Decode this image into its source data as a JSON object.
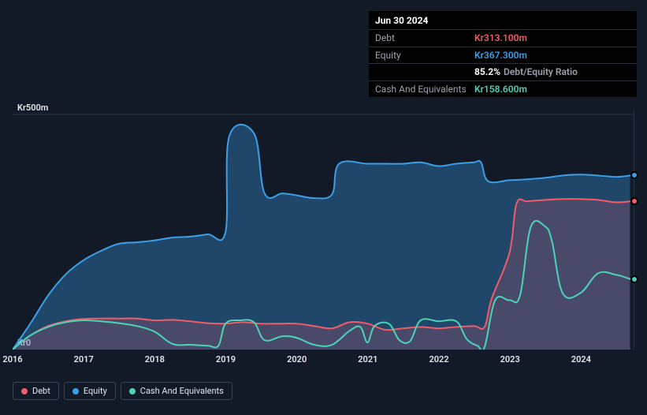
{
  "tooltip": {
    "date": "Jun 30 2024",
    "rows": [
      {
        "label": "Debt",
        "value": "Kr313.100m",
        "color": "#f05c6a"
      },
      {
        "label": "Equity",
        "value": "Kr367.300m",
        "color": "#3b9fe8"
      },
      {
        "label": "",
        "ratio_value": "85.2%",
        "ratio_label": "Debt/Equity Ratio"
      },
      {
        "label": "Cash And Equivalents",
        "value": "Kr158.600m",
        "color": "#4bd3b8"
      }
    ]
  },
  "chart": {
    "type": "area",
    "xlim": [
      2016,
      2024.75
    ],
    "ylim": [
      0,
      510
    ],
    "y_ticks": [
      0,
      500
    ],
    "y_tick_labels": [
      "Kr0",
      "Kr500m"
    ],
    "x_ticks": [
      2016,
      2017,
      2018,
      2019,
      2020,
      2021,
      2022,
      2023,
      2024
    ],
    "x_tick_labels": [
      "2016",
      "2017",
      "2018",
      "2019",
      "2020",
      "2021",
      "2022",
      "2023",
      "2024"
    ],
    "background_color": "#121a27",
    "grid_color": "#2a3446",
    "series": {
      "equity": {
        "label": "Equity",
        "color": "#3b9fe8",
        "fill_opacity": 0.35,
        "stroke_width": 2,
        "points": [
          [
            2016.0,
            0
          ],
          [
            2016.25,
            55
          ],
          [
            2016.5,
            115
          ],
          [
            2016.75,
            160
          ],
          [
            2017.0,
            190
          ],
          [
            2017.25,
            210
          ],
          [
            2017.5,
            225
          ],
          [
            2017.75,
            228
          ],
          [
            2018.0,
            232
          ],
          [
            2018.25,
            238
          ],
          [
            2018.5,
            240
          ],
          [
            2018.75,
            245
          ],
          [
            2019.0,
            250
          ],
          [
            2019.05,
            452
          ],
          [
            2019.4,
            460
          ],
          [
            2019.55,
            332
          ],
          [
            2019.8,
            332
          ],
          [
            2020.0,
            328
          ],
          [
            2020.25,
            322
          ],
          [
            2020.5,
            330
          ],
          [
            2020.6,
            395
          ],
          [
            2021.0,
            395
          ],
          [
            2021.25,
            395
          ],
          [
            2021.5,
            395
          ],
          [
            2021.75,
            398
          ],
          [
            2022.0,
            390
          ],
          [
            2022.25,
            395
          ],
          [
            2022.5,
            398
          ],
          [
            2022.6,
            398
          ],
          [
            2022.7,
            358
          ],
          [
            2023.0,
            360
          ],
          [
            2023.25,
            362
          ],
          [
            2023.5,
            365
          ],
          [
            2023.75,
            370
          ],
          [
            2024.0,
            372
          ],
          [
            2024.25,
            370
          ],
          [
            2024.5,
            367
          ],
          [
            2024.7,
            370
          ]
        ]
      },
      "debt": {
        "label": "Debt",
        "color": "#f05c6a",
        "fill_opacity": 0.2,
        "stroke_width": 2,
        "points": [
          [
            2016.0,
            0
          ],
          [
            2016.25,
            30
          ],
          [
            2016.5,
            50
          ],
          [
            2016.75,
            60
          ],
          [
            2017.0,
            65
          ],
          [
            2017.25,
            66
          ],
          [
            2017.5,
            66
          ],
          [
            2017.75,
            66
          ],
          [
            2018.0,
            62
          ],
          [
            2018.25,
            63
          ],
          [
            2018.5,
            60
          ],
          [
            2018.75,
            56
          ],
          [
            2019.0,
            55
          ],
          [
            2019.25,
            58
          ],
          [
            2019.5,
            55
          ],
          [
            2019.75,
            55
          ],
          [
            2020.0,
            55
          ],
          [
            2020.25,
            50
          ],
          [
            2020.5,
            45
          ],
          [
            2020.75,
            58
          ],
          [
            2021.0,
            55
          ],
          [
            2021.25,
            42
          ],
          [
            2021.5,
            45
          ],
          [
            2021.75,
            48
          ],
          [
            2022.0,
            45
          ],
          [
            2022.25,
            48
          ],
          [
            2022.5,
            50
          ],
          [
            2022.65,
            48
          ],
          [
            2022.75,
            108
          ],
          [
            2023.0,
            205
          ],
          [
            2023.1,
            310
          ],
          [
            2023.25,
            315
          ],
          [
            2023.5,
            318
          ],
          [
            2023.75,
            320
          ],
          [
            2024.0,
            320
          ],
          [
            2024.25,
            318
          ],
          [
            2024.5,
            313
          ],
          [
            2024.7,
            315
          ]
        ]
      },
      "cash": {
        "label": "Cash And Equivalents",
        "color": "#4bd3b8",
        "fill_opacity": 0.0,
        "stroke_width": 2,
        "points": [
          [
            2016.0,
            0
          ],
          [
            2016.25,
            30
          ],
          [
            2016.5,
            48
          ],
          [
            2016.75,
            58
          ],
          [
            2017.0,
            62
          ],
          [
            2017.25,
            60
          ],
          [
            2017.5,
            56
          ],
          [
            2017.75,
            50
          ],
          [
            2018.0,
            38
          ],
          [
            2018.25,
            12
          ],
          [
            2018.5,
            10
          ],
          [
            2018.75,
            8
          ],
          [
            2018.9,
            8
          ],
          [
            2019.0,
            55
          ],
          [
            2019.2,
            62
          ],
          [
            2019.4,
            58
          ],
          [
            2019.55,
            20
          ],
          [
            2019.8,
            28
          ],
          [
            2020.0,
            25
          ],
          [
            2020.25,
            10
          ],
          [
            2020.5,
            10
          ],
          [
            2020.75,
            40
          ],
          [
            2020.9,
            48
          ],
          [
            2021.0,
            15
          ],
          [
            2021.1,
            50
          ],
          [
            2021.3,
            55
          ],
          [
            2021.45,
            20
          ],
          [
            2021.6,
            18
          ],
          [
            2021.75,
            62
          ],
          [
            2022.0,
            60
          ],
          [
            2022.25,
            60
          ],
          [
            2022.4,
            22
          ],
          [
            2022.55,
            8
          ],
          [
            2022.65,
            5
          ],
          [
            2022.8,
            105
          ],
          [
            2023.0,
            105
          ],
          [
            2023.15,
            115
          ],
          [
            2023.3,
            260
          ],
          [
            2023.5,
            262
          ],
          [
            2023.6,
            230
          ],
          [
            2023.75,
            120
          ],
          [
            2024.0,
            120
          ],
          [
            2024.25,
            162
          ],
          [
            2024.5,
            159
          ],
          [
            2024.7,
            150
          ]
        ]
      }
    },
    "end_markers": [
      {
        "color": "#3b9fe8",
        "x": 2024.75,
        "y": 370
      },
      {
        "color": "#f05c6a",
        "x": 2024.75,
        "y": 315
      },
      {
        "color": "#4bd3b8",
        "x": 2024.75,
        "y": 150
      }
    ]
  },
  "legend": [
    {
      "label": "Debt",
      "color": "#f05c6a"
    },
    {
      "label": "Equity",
      "color": "#3b9fe8"
    },
    {
      "label": "Cash And Equivalents",
      "color": "#4bd3b8"
    }
  ]
}
